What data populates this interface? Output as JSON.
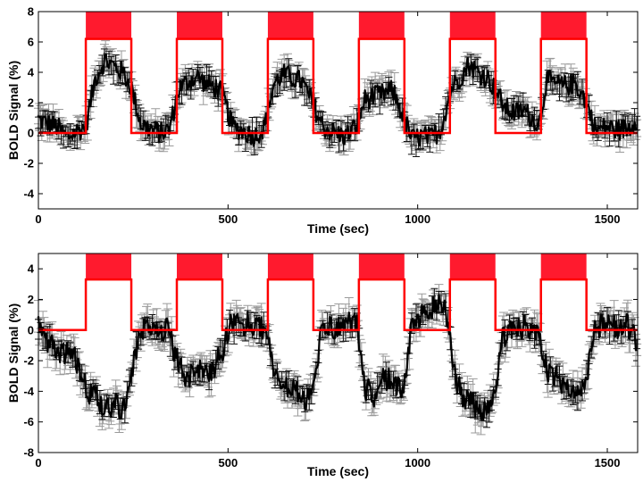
{
  "chart_data": [
    {
      "type": "line",
      "xlabel": "Time (sec)",
      "ylabel": "BOLD Signal (%)",
      "xlim": [
        0,
        1580
      ],
      "ylim": [
        -5,
        8
      ],
      "xticks": [
        0,
        500,
        1000,
        1500
      ],
      "yticks": [
        -4,
        -2,
        0,
        2,
        4,
        6,
        8
      ],
      "grid": false,
      "colors": {
        "signal": "#000000",
        "error": "#9a9a9a",
        "block": "#ff0000",
        "fill": "#ff1a2e"
      },
      "block_design": {
        "on_intervals": [
          [
            125,
            245
          ],
          [
            365,
            485
          ],
          [
            605,
            725
          ],
          [
            845,
            965
          ],
          [
            1085,
            1205
          ],
          [
            1325,
            1445
          ]
        ],
        "low": 0,
        "high": 6.2,
        "top": 8
      },
      "series": [
        {
          "values": [
            [
              0,
              0.9
            ],
            [
              25,
              0.6
            ],
            [
              50,
              0.4
            ],
            [
              75,
              -0.3
            ],
            [
              100,
              0.1
            ],
            [
              125,
              0.4
            ],
            [
              150,
              3.6
            ],
            [
              175,
              4.8
            ],
            [
              200,
              4.4
            ],
            [
              225,
              3.9
            ],
            [
              245,
              3.0
            ],
            [
              270,
              0.6
            ],
            [
              295,
              0.3
            ],
            [
              320,
              0.0
            ],
            [
              345,
              0.2
            ],
            [
              370,
              2.9
            ],
            [
              395,
              3.4
            ],
            [
              420,
              3.7
            ],
            [
              445,
              3.2
            ],
            [
              470,
              3.0
            ],
            [
              485,
              2.6
            ],
            [
              510,
              0.5
            ],
            [
              540,
              0.1
            ],
            [
              570,
              -0.2
            ],
            [
              595,
              0.3
            ],
            [
              620,
              3.2
            ],
            [
              645,
              3.9
            ],
            [
              670,
              3.6
            ],
            [
              695,
              3.4
            ],
            [
              720,
              2.1
            ],
            [
              750,
              0.4
            ],
            [
              780,
              0.0
            ],
            [
              810,
              -0.2
            ],
            [
              840,
              0.5
            ],
            [
              860,
              2.2
            ],
            [
              885,
              2.4
            ],
            [
              910,
              2.6
            ],
            [
              935,
              2.8
            ],
            [
              960,
              1.2
            ],
            [
              985,
              -0.4
            ],
            [
              1010,
              -0.2
            ],
            [
              1035,
              -0.3
            ],
            [
              1060,
              0.2
            ],
            [
              1090,
              3.0
            ],
            [
              1110,
              3.6
            ],
            [
              1135,
              4.5
            ],
            [
              1160,
              4.0
            ],
            [
              1185,
              3.6
            ],
            [
              1205,
              2.8
            ],
            [
              1230,
              1.7
            ],
            [
              1255,
              1.3
            ],
            [
              1280,
              1.5
            ],
            [
              1305,
              0.9
            ],
            [
              1320,
              0.6
            ],
            [
              1340,
              3.5
            ],
            [
              1365,
              3.2
            ],
            [
              1390,
              3.1
            ],
            [
              1415,
              3.3
            ],
            [
              1440,
              2.3
            ],
            [
              1470,
              0.2
            ],
            [
              1500,
              0.4
            ],
            [
              1530,
              0.2
            ],
            [
              1555,
              0.3
            ],
            [
              1575,
              0.9
            ]
          ]
        }
      ]
    },
    {
      "type": "line",
      "xlabel": "Time (sec)",
      "ylabel": "BOLD Signal (%)",
      "xlim": [
        0,
        1580
      ],
      "ylim": [
        -8,
        5
      ],
      "xticks": [
        0,
        500,
        1000,
        1500
      ],
      "yticks": [
        -8,
        -6,
        -4,
        -2,
        0,
        2,
        4
      ],
      "grid": false,
      "colors": {
        "signal": "#000000",
        "error": "#9a9a9a",
        "block": "#ff0000",
        "fill": "#ff1a2e"
      },
      "block_design": {
        "on_intervals": [
          [
            125,
            245
          ],
          [
            365,
            485
          ],
          [
            605,
            725
          ],
          [
            845,
            965
          ],
          [
            1085,
            1205
          ],
          [
            1325,
            1445
          ]
        ],
        "low": 0,
        "high": 3.3,
        "top": 5
      },
      "series": [
        {
          "values": [
            [
              0,
              0.4
            ],
            [
              20,
              -0.5
            ],
            [
              45,
              -1.3
            ],
            [
              70,
              -1.5
            ],
            [
              95,
              -1.8
            ],
            [
              115,
              -2.8
            ],
            [
              130,
              -4.2
            ],
            [
              155,
              -4.5
            ],
            [
              175,
              -5.0
            ],
            [
              200,
              -4.8
            ],
            [
              225,
              -5.1
            ],
            [
              245,
              -3.0
            ],
            [
              260,
              -0.8
            ],
            [
              280,
              0.1
            ],
            [
              300,
              0.5
            ],
            [
              320,
              0.2
            ],
            [
              340,
              0.0
            ],
            [
              365,
              -1.8
            ],
            [
              390,
              -3.2
            ],
            [
              415,
              -2.6
            ],
            [
              440,
              -2.8
            ],
            [
              465,
              -2.4
            ],
            [
              485,
              -1.3
            ],
            [
              505,
              0.2
            ],
            [
              530,
              0.4
            ],
            [
              555,
              0.5
            ],
            [
              580,
              0.2
            ],
            [
              600,
              0.0
            ],
            [
              620,
              -2.8
            ],
            [
              645,
              -3.5
            ],
            [
              670,
              -4.0
            ],
            [
              695,
              -4.3
            ],
            [
              720,
              -4.6
            ],
            [
              745,
              -0.5
            ],
            [
              770,
              0.3
            ],
            [
              795,
              0.1
            ],
            [
              820,
              0.6
            ],
            [
              840,
              0.2
            ],
            [
              860,
              -3.8
            ],
            [
              885,
              -4.2
            ],
            [
              910,
              -3.0
            ],
            [
              935,
              -3.4
            ],
            [
              960,
              -4.0
            ],
            [
              985,
              0.4
            ],
            [
              1005,
              0.8
            ],
            [
              1030,
              1.1
            ],
            [
              1055,
              1.8
            ],
            [
              1075,
              1.5
            ],
            [
              1095,
              -2.8
            ],
            [
              1115,
              -4.2
            ],
            [
              1140,
              -4.8
            ],
            [
              1165,
              -5.2
            ],
            [
              1190,
              -5.3
            ],
            [
              1205,
              -4.0
            ],
            [
              1225,
              -0.4
            ],
            [
              1250,
              0.2
            ],
            [
              1275,
              0.1
            ],
            [
              1300,
              0.3
            ],
            [
              1320,
              -0.6
            ],
            [
              1345,
              -2.8
            ],
            [
              1370,
              -3.2
            ],
            [
              1395,
              -3.6
            ],
            [
              1420,
              -4.2
            ],
            [
              1440,
              -3.8
            ],
            [
              1465,
              -0.2
            ],
            [
              1490,
              0.4
            ],
            [
              1515,
              0.1
            ],
            [
              1540,
              0.4
            ],
            [
              1560,
              0.2
            ],
            [
              1575,
              -0.9
            ]
          ]
        }
      ]
    }
  ]
}
